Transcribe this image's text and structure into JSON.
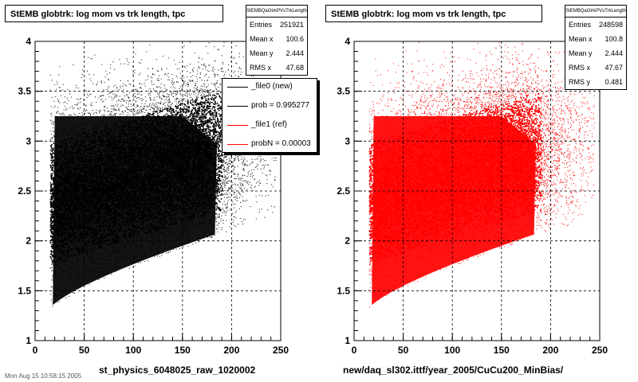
{
  "chart_data": [
    {
      "type": "scatter",
      "title": "StEMB globtrk: log mom vs trk length, tpc",
      "xlabel": "st_physics_6048025_raw_1020002",
      "ylabel": "",
      "xlim": [
        0,
        250
      ],
      "ylim": [
        1,
        4
      ],
      "x_ticks": [
        "0",
        "50",
        "100",
        "150",
        "200",
        "250"
      ],
      "y_ticks": [
        "1",
        "1.5",
        "2",
        "2.5",
        "3",
        "3.5",
        "4"
      ],
      "grid": true,
      "color": "#000000",
      "stats": {
        "name": "StEMBQaGtrkPVsTrkLength",
        "entries_label": "Entries",
        "entries": "251921",
        "mean_x_label": "Mean x",
        "mean_x": "100.6",
        "mean_y_label": "Mean y",
        "mean_y": "2.444",
        "rms_x_label": "RMS x",
        "rms_x": "47.68"
      },
      "legend": [
        {
          "label": "_file0 (new)",
          "color": "#000000"
        },
        {
          "label": "prob = 0.995277",
          "color": "#000000"
        },
        {
          "label": "_file1 (ref)",
          "color": "#ff0000"
        },
        {
          "label": "probN = 0.00003",
          "color": "#ff0000"
        }
      ],
      "legend_position": "top-right"
    },
    {
      "type": "scatter",
      "title": "StEMB globtrk: log mom vs trk length, tpc",
      "xlabel": "new/daq_sl302.ittf/year_2005/CuCu200_MinBias/",
      "ylabel": "",
      "xlim": [
        0,
        250
      ],
      "ylim": [
        1,
        4
      ],
      "x_ticks": [
        "0",
        "50",
        "100",
        "150",
        "200",
        "250"
      ],
      "y_ticks": [
        "1",
        "1.5",
        "2",
        "2.5",
        "3",
        "3.5",
        "4"
      ],
      "grid": true,
      "color": "#ff0000",
      "stats": {
        "name": "StEMBQaGtrkPVsTrkLength",
        "entries_label": "Entries",
        "entries": "248598",
        "mean_x_label": "Mean x",
        "mean_x": "100.8",
        "mean_y_label": "Mean y",
        "mean_y": "2.444",
        "rms_x_label": "RMS x",
        "rms_x": "47.67",
        "rms_y_label": "RMS y",
        "rms_y": "0.481"
      }
    }
  ],
  "footer_text": "Mon Aug 15 10:58:15 2005"
}
